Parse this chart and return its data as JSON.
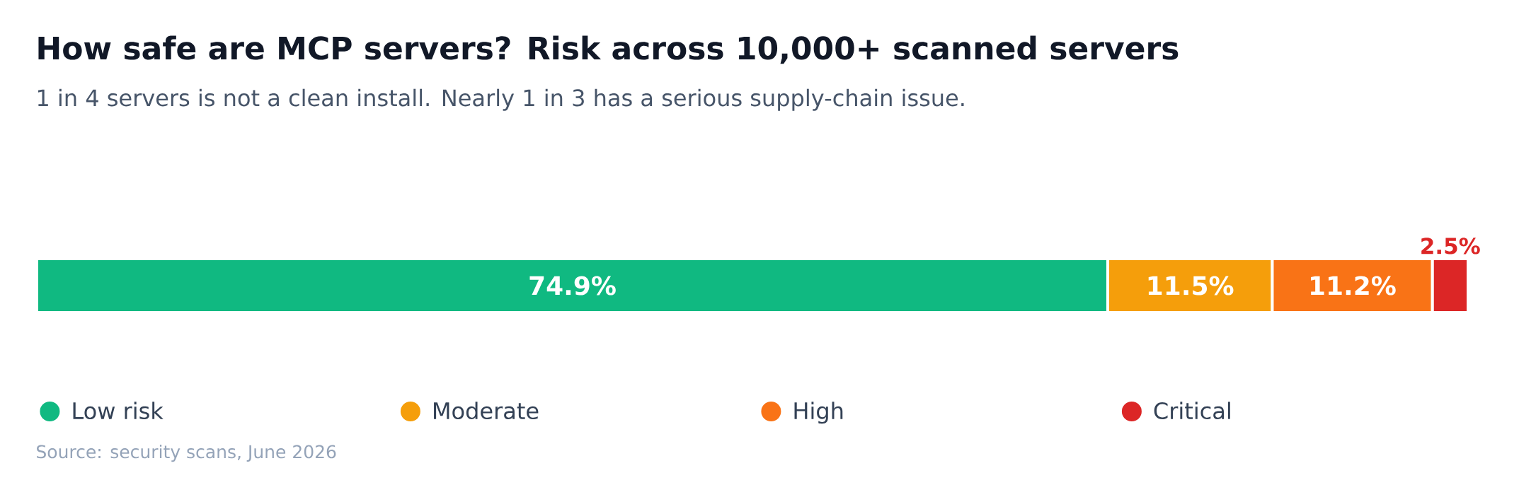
{
  "chart_data": {
    "type": "bar",
    "title": "How safe are MCP servers? Risk across 10,000+ scanned servers",
    "subtitle": "1 in 4 servers is not a clean install. Nearly 1 in 3 has a serious supply-chain issue.",
    "categories": [
      null
    ],
    "orientation": "horizontal",
    "stacked": true,
    "legend": "bottom",
    "series": [
      {
        "name": "Low risk",
        "color": "#10b981",
        "values": [
          74.9
        ],
        "value_labels": [
          "74.9%"
        ]
      },
      {
        "name": "Moderate",
        "color": "#f59e0b",
        "values": [
          11.5
        ],
        "value_labels": [
          "11.5%"
        ]
      },
      {
        "name": "High",
        "color": "#f97316",
        "values": [
          11.2
        ],
        "value_labels": [
          "11.2%"
        ]
      },
      {
        "name": "Critical",
        "color": "#dc2626",
        "values": [
          2.5
        ],
        "value_labels": [
          "2.5%"
        ]
      }
    ],
    "annotations": [
      "Source: security scans, June 2026"
    ]
  }
}
